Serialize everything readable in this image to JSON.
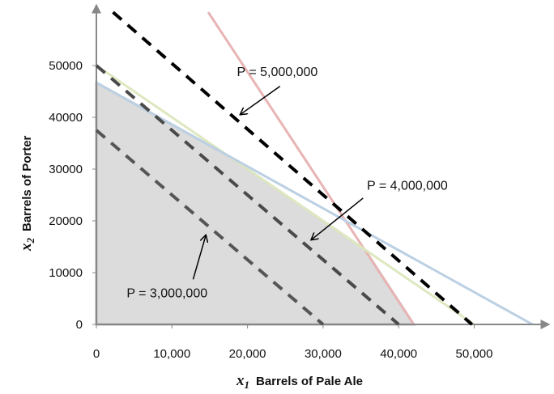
{
  "chart_data": {
    "type": "line",
    "title": "",
    "xlabel": {
      "var": "x",
      "sub": "1",
      "text": "Barrels of Pale Ale"
    },
    "ylabel": {
      "var": "x",
      "sub": "2",
      "text": "Barrels of Porter"
    },
    "xlim": [
      0,
      59000
    ],
    "ylim": [
      0,
      61000
    ],
    "xticks": [
      0,
      10000,
      20000,
      30000,
      40000,
      50000
    ],
    "xtick_labels": [
      "0",
      "10,000",
      "20,000",
      "30,000",
      "40,000",
      "50,000"
    ],
    "yticks": [
      0,
      10000,
      20000,
      30000,
      40000,
      50000
    ],
    "ytick_labels": [
      "0",
      "10000",
      "20000",
      "30000",
      "40000",
      "50000"
    ],
    "grid": false,
    "feasible_region": {
      "color": "#dcdcdc",
      "vertices": [
        [
          0,
          0
        ],
        [
          0,
          46700
        ],
        [
          17300,
          32700
        ],
        [
          35500,
          14500
        ],
        [
          42000,
          0
        ]
      ]
    },
    "constraints": [
      {
        "color": "#e8b4b4",
        "points": [
          [
            14800,
            60300
          ],
          [
            42000,
            0
          ]
        ]
      },
      {
        "color": "#dde8c0",
        "points": [
          [
            0,
            50000
          ],
          [
            50000,
            0
          ]
        ]
      },
      {
        "color": "#bcd0e4",
        "points": [
          [
            0,
            46700
          ],
          [
            57700,
            0
          ]
        ]
      }
    ],
    "profit_lines": [
      {
        "label": "P = 3,000,000",
        "color": "#555555",
        "points": [
          [
            0,
            37500
          ],
          [
            30000,
            0
          ]
        ],
        "arrow_to": [
          14500,
          17300
        ],
        "arrow_from": [
          12800,
          8700
        ],
        "label_at": [
          4000,
          5200
        ]
      },
      {
        "label": "P = 4,000,000",
        "color": "#4a4a4a",
        "points": [
          [
            0,
            50000
          ],
          [
            40000,
            0
          ]
        ],
        "arrow_to": [
          28400,
          16300
        ],
        "arrow_from": [
          35300,
          24400
        ],
        "label_at": [
          35800,
          26000
        ]
      },
      {
        "label": "P = 5,000,000",
        "color": "#000000",
        "points": [
          [
            2200,
            60300
          ],
          [
            49700,
            0
          ]
        ],
        "arrow_to": [
          19000,
          40500
        ],
        "arrow_from": [
          24300,
          46000
        ],
        "label_at": [
          18600,
          48000
        ]
      }
    ]
  }
}
